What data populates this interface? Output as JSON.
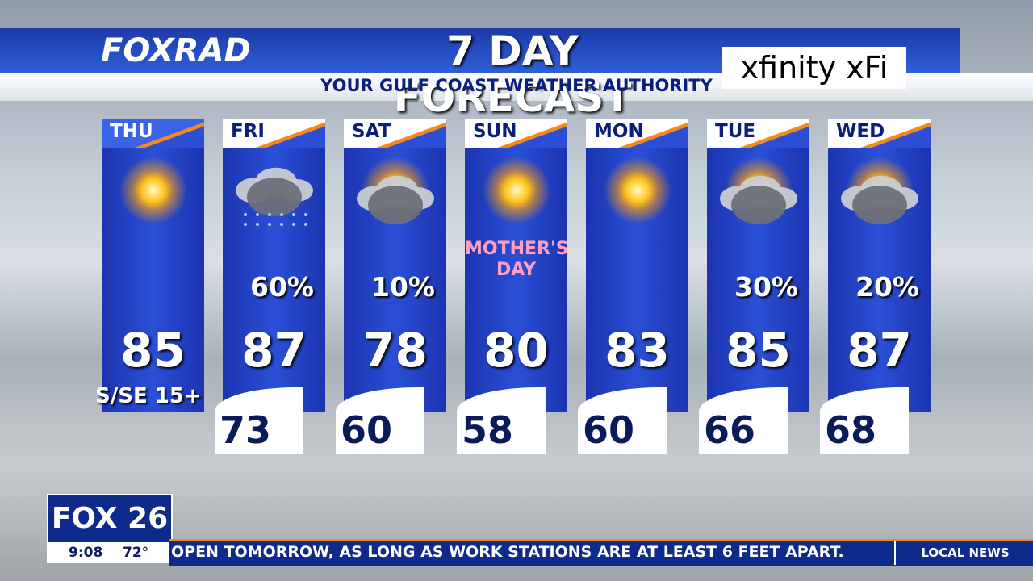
{
  "header": {
    "logo": "FOXRAD",
    "title": "7 DAY FORECAST",
    "subtitle": "YOUR GULF COAST WEATHER AUTHORITY",
    "sponsor": "xfinity xFi"
  },
  "days": [
    {
      "day": "THU",
      "high": 85,
      "wind": "S/SE 15+"
    },
    {
      "day": "FRI",
      "rain": "60%",
      "high": 87,
      "low": 73
    },
    {
      "day": "SAT",
      "rain": "10%",
      "high": 78,
      "low": 60
    },
    {
      "day": "SUN",
      "note": "MOTHER'S DAY",
      "high": 80,
      "low": 58
    },
    {
      "day": "MON",
      "high": 83,
      "low": 60
    },
    {
      "day": "TUE",
      "rain": "30%",
      "high": 85,
      "low": 66
    },
    {
      "day": "WED",
      "rain": "20%",
      "high": 87,
      "low": 68
    }
  ],
  "footer": {
    "station": "FOX 26",
    "time": "9:08",
    "temp": "72°",
    "ticker": "OPEN TOMORROW, AS LONG AS WORK STATIONS ARE AT LEAST 6 FEET APART.",
    "section": "LOCAL NEWS"
  }
}
